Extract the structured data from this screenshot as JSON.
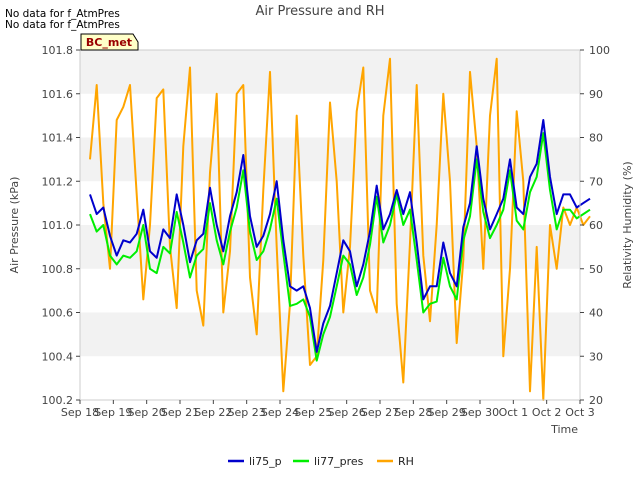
{
  "notes": [
    "No data for f_AtmPres",
    "No data for f_AtmPres"
  ],
  "badge": "BC_met",
  "colors": {
    "li75_p": "#0000cc",
    "li77_pres": "#00ee00",
    "RH": "#ffa500",
    "band": "#f2f2f2",
    "badge_bg": "#ffffc8",
    "badge_text": "#990000"
  },
  "chart_data": {
    "type": "line",
    "title": "Air Pressure and RH",
    "xlabel": "Time",
    "ylabel": "Air Pressure (kPa)",
    "y2label": "Relativity Humidity (%)",
    "x_range": [
      "Sep 18",
      "Oct 3"
    ],
    "x_ticks": [
      "Sep 18",
      "Sep 19",
      "Sep 20",
      "Sep 21",
      "Sep 22",
      "Sep 23",
      "Sep 24",
      "Sep 25",
      "Sep 26",
      "Sep 27",
      "Sep 28",
      "Sep 29",
      "Sep 30",
      "Oct 1",
      "Oct 2",
      "Oct 3"
    ],
    "ylim": [
      100.2,
      101.8
    ],
    "y_ticks": [
      100.2,
      100.4,
      100.6,
      100.8,
      101.0,
      101.2,
      101.4,
      101.6,
      101.8
    ],
    "y2lim": [
      20,
      100
    ],
    "y2_ticks": [
      20,
      30,
      40,
      50,
      60,
      70,
      80,
      90,
      100
    ],
    "grid": "horizontal bands",
    "legend": "bottom-center",
    "x": [
      0.3,
      0.5,
      0.7,
      0.9,
      1.1,
      1.3,
      1.5,
      1.7,
      1.9,
      2.1,
      2.3,
      2.5,
      2.7,
      2.9,
      3.1,
      3.3,
      3.5,
      3.7,
      3.9,
      4.1,
      4.3,
      4.5,
      4.7,
      4.9,
      5.1,
      5.3,
      5.5,
      5.7,
      5.9,
      6.1,
      6.3,
      6.5,
      6.7,
      6.9,
      7.1,
      7.3,
      7.5,
      7.7,
      7.9,
      8.1,
      8.3,
      8.5,
      8.7,
      8.9,
      9.1,
      9.3,
      9.5,
      9.7,
      9.9,
      10.1,
      10.3,
      10.5,
      10.7,
      10.9,
      11.1,
      11.3,
      11.5,
      11.7,
      11.9,
      12.1,
      12.3,
      12.5,
      12.7,
      12.9,
      13.1,
      13.3,
      13.5,
      13.7,
      13.9,
      14.1,
      14.3,
      14.5,
      14.7,
      14.9,
      15.1,
      15.3
    ],
    "series": [
      {
        "name": "li75_p",
        "values": [
          101.14,
          101.05,
          101.08,
          100.95,
          100.86,
          100.93,
          100.92,
          100.96,
          101.07,
          100.88,
          100.85,
          100.98,
          100.94,
          101.14,
          101.0,
          100.83,
          100.93,
          100.96,
          101.17,
          101.0,
          100.88,
          101.04,
          101.15,
          101.32,
          101.04,
          100.9,
          100.95,
          101.05,
          101.2,
          100.93,
          100.72,
          100.7,
          100.72,
          100.62,
          100.42,
          100.55,
          100.63,
          100.78,
          100.93,
          100.88,
          100.72,
          100.82,
          100.97,
          101.18,
          100.98,
          101.05,
          101.16,
          101.05,
          101.15,
          100.92,
          100.66,
          100.72,
          100.72,
          100.92,
          100.78,
          100.72,
          100.99,
          101.1,
          101.36,
          101.12,
          100.98,
          101.05,
          101.12,
          101.3,
          101.08,
          101.05,
          101.22,
          101.28,
          101.48,
          101.22,
          101.05,
          101.14,
          101.14,
          101.08,
          101.1,
          101.12
        ]
      },
      {
        "name": "li77_pres",
        "values": [
          101.05,
          100.97,
          101.0,
          100.86,
          100.82,
          100.86,
          100.85,
          100.88,
          101.0,
          100.8,
          100.78,
          100.9,
          100.87,
          101.06,
          100.92,
          100.76,
          100.86,
          100.89,
          101.1,
          100.93,
          100.82,
          100.97,
          101.08,
          101.25,
          100.97,
          100.84,
          100.88,
          100.98,
          101.12,
          100.87,
          100.63,
          100.64,
          100.66,
          100.58,
          100.38,
          100.5,
          100.58,
          100.72,
          100.86,
          100.82,
          100.68,
          100.76,
          100.91,
          101.13,
          100.92,
          101.0,
          101.14,
          101.0,
          101.07,
          100.84,
          100.6,
          100.64,
          100.65,
          100.85,
          100.72,
          100.66,
          100.93,
          101.04,
          101.3,
          101.06,
          100.94,
          101.0,
          101.07,
          101.25,
          101.02,
          100.98,
          101.15,
          101.22,
          101.42,
          101.16,
          100.98,
          101.07,
          101.07,
          101.03,
          101.05,
          101.07
        ]
      },
      {
        "name": "RH",
        "values": [
          75,
          92,
          65,
          50,
          84,
          87,
          92,
          67,
          43,
          60,
          89,
          91,
          55,
          41,
          78,
          96,
          45,
          37,
          72,
          90,
          40,
          54,
          90,
          92,
          48,
          35,
          68,
          95,
          55,
          22,
          42,
          85,
          53,
          28,
          30,
          52,
          88,
          70,
          40,
          55,
          86,
          96,
          45,
          40,
          85,
          98,
          42,
          24,
          56,
          92,
          53,
          38,
          60,
          90,
          70,
          33,
          52,
          95,
          78,
          50,
          85,
          98,
          30,
          50,
          86,
          70,
          22,
          55,
          20,
          60,
          50,
          64,
          60,
          64,
          60,
          62
        ]
      }
    ]
  }
}
